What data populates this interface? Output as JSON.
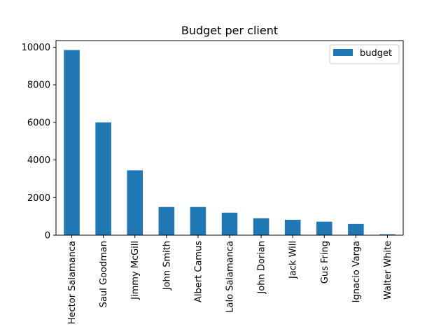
{
  "chart_data": {
    "type": "bar",
    "title": "Budget per client",
    "xlabel": "",
    "ylabel": "",
    "categories": [
      "Hector Salamanca",
      "Saul Goodman",
      "Jimmy McGill",
      "John Smith",
      "Albert Camus",
      "Lalo Salamanca",
      "John Dorian",
      "Jack Will",
      "Gus Fring",
      "Ignacio Varga",
      "Walter White"
    ],
    "series": [
      {
        "name": "budget",
        "color": "#1f77b4",
        "values": [
          9850,
          6000,
          3450,
          1500,
          1500,
          1200,
          900,
          820,
          720,
          600,
          50
        ]
      }
    ],
    "ylim": [
      0,
      10350
    ],
    "yticks": [
      0,
      2000,
      4000,
      6000,
      8000,
      10000
    ],
    "grid": false,
    "legend": "top-right"
  }
}
